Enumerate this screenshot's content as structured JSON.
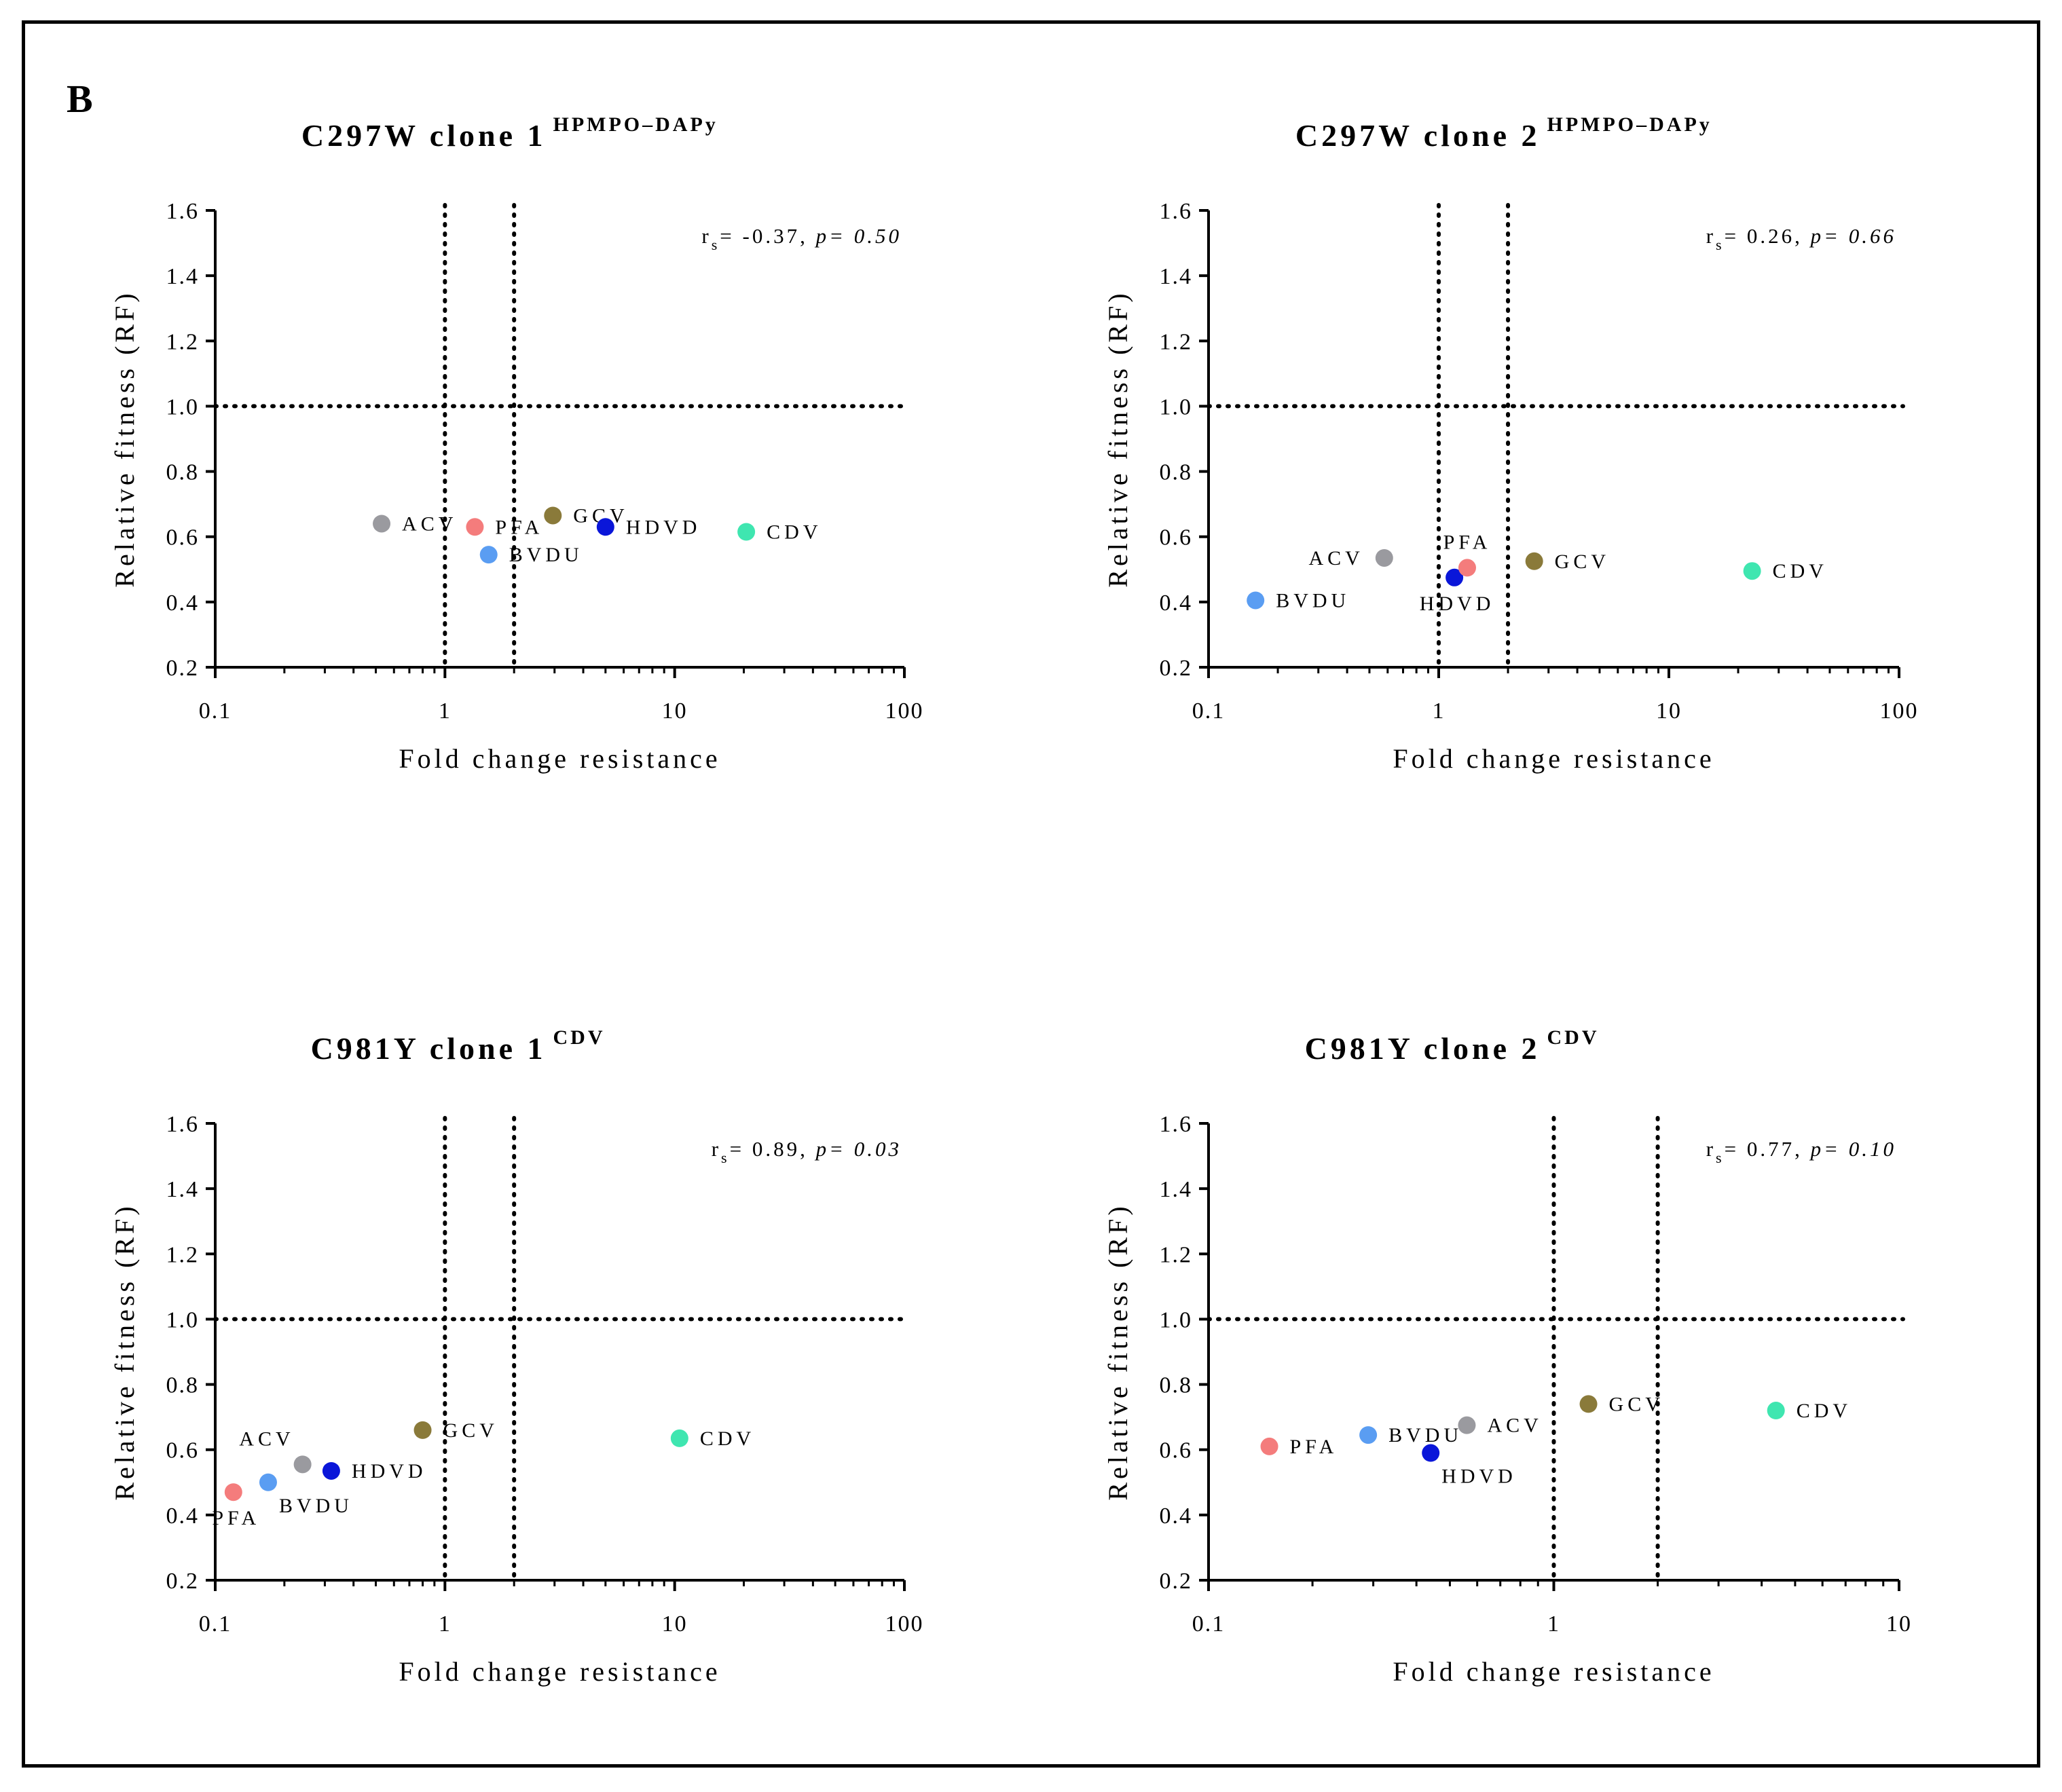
{
  "figure": {
    "panel_letter": "B",
    "frame_color": "#000000"
  },
  "colors": {
    "ACV": "#9a9a9f",
    "PFA": "#f47c7c",
    "GCV": "#8a7a3a",
    "HDVD": "#0a16d9",
    "CDV": "#3fe6b0",
    "BVDU": "#5a9df2"
  },
  "chart_data": [
    {
      "type": "scatter",
      "title": "C297W  clone 1",
      "title_superscript": "HPMPO–DAPy",
      "xlabel": "Fold change resistance",
      "ylabel": "Relative fitness (RF)",
      "xscale": "log",
      "xlim": [
        0.1,
        100
      ],
      "ylim": [
        0.2,
        1.6
      ],
      "xticks": [
        0.1,
        1,
        10,
        100
      ],
      "xtick_labels": [
        "0.1",
        "1",
        "10",
        "100"
      ],
      "yticks": [
        0.2,
        0.4,
        0.6,
        0.8,
        1.0,
        1.2,
        1.4,
        1.6
      ],
      "ytick_labels": [
        "0.2",
        "0.4",
        "0.6",
        "0.8",
        "1.0",
        "1.2",
        "1.4",
        "1.6"
      ],
      "reference_lines": {
        "x": [
          1,
          2
        ],
        "y": [
          1.0
        ],
        "style": "dotted"
      },
      "stat": {
        "r_label": "r",
        "r_sub": "s",
        "r_text": "= -0.37, ",
        "p_text": "p= 0.50"
      },
      "points": [
        {
          "label": "ACV",
          "x": 0.53,
          "y": 0.64,
          "label_pos": "right"
        },
        {
          "label": "PFA",
          "x": 1.35,
          "y": 0.63,
          "label_pos": "right"
        },
        {
          "label": "BVDU",
          "x": 1.55,
          "y": 0.545,
          "label_pos": "right"
        },
        {
          "label": "GCV",
          "x": 2.95,
          "y": 0.665,
          "label_pos": "right"
        },
        {
          "label": "HDVD",
          "x": 5.0,
          "y": 0.63,
          "label_pos": "right"
        },
        {
          "label": "CDV",
          "x": 20.5,
          "y": 0.615,
          "label_pos": "right"
        }
      ]
    },
    {
      "type": "scatter",
      "title": "C297W  clone 2",
      "title_superscript": "HPMPO–DAPy",
      "xlabel": "Fold change resistance",
      "ylabel": "Relative fitness (RF)",
      "xscale": "log",
      "xlim": [
        0.1,
        100
      ],
      "ylim": [
        0.2,
        1.6
      ],
      "xticks": [
        0.1,
        1,
        10,
        100
      ],
      "xtick_labels": [
        "0.1",
        "1",
        "10",
        "100"
      ],
      "yticks": [
        0.2,
        0.4,
        0.6,
        0.8,
        1.0,
        1.2,
        1.4,
        1.6
      ],
      "ytick_labels": [
        "0.2",
        "0.4",
        "0.6",
        "0.8",
        "1.0",
        "1.2",
        "1.4",
        "1.6"
      ],
      "reference_lines": {
        "x": [
          1,
          2
        ],
        "y": [
          1.0
        ],
        "style": "dotted"
      },
      "stat": {
        "r_label": "r",
        "r_sub": "s",
        "r_text": "= 0.26, ",
        "p_text": "p= 0.66"
      },
      "points": [
        {
          "label": "BVDU",
          "x": 0.16,
          "y": 0.405,
          "label_pos": "right"
        },
        {
          "label": "ACV",
          "x": 0.58,
          "y": 0.535,
          "label_pos": "left"
        },
        {
          "label": "HDVD",
          "x": 1.17,
          "y": 0.475,
          "label_pos": "below"
        },
        {
          "label": "PFA",
          "x": 1.33,
          "y": 0.505,
          "label_pos": "above"
        },
        {
          "label": "GCV",
          "x": 2.6,
          "y": 0.525,
          "label_pos": "right"
        },
        {
          "label": "CDV",
          "x": 23.0,
          "y": 0.495,
          "label_pos": "right"
        }
      ]
    },
    {
      "type": "scatter",
      "title": "C981Y  clone 1",
      "title_superscript": "CDV",
      "xlabel": "Fold change resistance",
      "ylabel": "Relative fitness (RF)",
      "xscale": "log",
      "xlim": [
        0.1,
        100
      ],
      "ylim": [
        0.2,
        1.6
      ],
      "xticks": [
        0.1,
        1,
        10,
        100
      ],
      "xtick_labels": [
        "0.1",
        "1",
        "10",
        "100"
      ],
      "yticks": [
        0.2,
        0.4,
        0.6,
        0.8,
        1.0,
        1.2,
        1.4,
        1.6
      ],
      "ytick_labels": [
        "0.2",
        "0.4",
        "0.6",
        "0.8",
        "1.0",
        "1.2",
        "1.4",
        "1.6"
      ],
      "reference_lines": {
        "x": [
          1,
          2
        ],
        "y": [
          1.0
        ],
        "style": "dotted"
      },
      "stat": {
        "r_label": "r",
        "r_sub": "s",
        "r_text": "= 0.89, ",
        "p_text": "p= 0.03"
      },
      "points": [
        {
          "label": "PFA",
          "x": 0.12,
          "y": 0.47,
          "label_pos": "below"
        },
        {
          "label": "BVDU",
          "x": 0.17,
          "y": 0.5,
          "label_pos": "below-right"
        },
        {
          "label": "ACV",
          "x": 0.24,
          "y": 0.555,
          "label_pos": "above-left"
        },
        {
          "label": "HDVD",
          "x": 0.32,
          "y": 0.535,
          "label_pos": "right"
        },
        {
          "label": "GCV",
          "x": 0.8,
          "y": 0.66,
          "label_pos": "right"
        },
        {
          "label": "CDV",
          "x": 10.5,
          "y": 0.635,
          "label_pos": "right"
        }
      ]
    },
    {
      "type": "scatter",
      "title": "C981Y  clone 2",
      "title_superscript": "CDV",
      "xlabel": "Fold change resistance",
      "ylabel": "Relative fitness (RF)",
      "xscale": "log",
      "xlim": [
        0.1,
        10
      ],
      "ylim": [
        0.2,
        1.6
      ],
      "xticks": [
        0.1,
        1,
        10
      ],
      "xtick_labels": [
        "0.1",
        "1",
        "10"
      ],
      "yticks": [
        0.2,
        0.4,
        0.6,
        0.8,
        1.0,
        1.2,
        1.4,
        1.6
      ],
      "ytick_labels": [
        "0.2",
        "0.4",
        "0.6",
        "0.8",
        "1.0",
        "1.2",
        "1.4",
        "1.6"
      ],
      "reference_lines": {
        "x": [
          1,
          2
        ],
        "y": [
          1.0
        ],
        "style": "dotted"
      },
      "stat": {
        "r_label": "r",
        "r_sub": "s",
        "r_text": "= 0.77, ",
        "p_text": "p= 0.10"
      },
      "points": [
        {
          "label": "PFA",
          "x": 0.15,
          "y": 0.61,
          "label_pos": "right"
        },
        {
          "label": "BVDU",
          "x": 0.29,
          "y": 0.645,
          "label_pos": "right"
        },
        {
          "label": "HDVD",
          "x": 0.44,
          "y": 0.59,
          "label_pos": "below-right"
        },
        {
          "label": "ACV",
          "x": 0.56,
          "y": 0.675,
          "label_pos": "right"
        },
        {
          "label": "GCV",
          "x": 1.26,
          "y": 0.74,
          "label_pos": "right"
        },
        {
          "label": "CDV",
          "x": 4.4,
          "y": 0.72,
          "label_pos": "right"
        }
      ]
    }
  ]
}
